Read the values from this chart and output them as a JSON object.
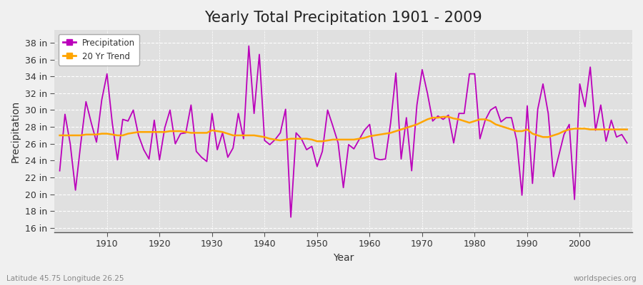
{
  "title": "Yearly Total Precipitation 1901 - 2009",
  "xlabel": "Year",
  "ylabel": "Precipitation",
  "years": [
    1901,
    1902,
    1903,
    1904,
    1905,
    1906,
    1907,
    1908,
    1909,
    1910,
    1911,
    1912,
    1913,
    1914,
    1915,
    1916,
    1917,
    1918,
    1919,
    1920,
    1921,
    1922,
    1923,
    1924,
    1925,
    1926,
    1927,
    1928,
    1929,
    1930,
    1931,
    1932,
    1933,
    1934,
    1935,
    1936,
    1937,
    1938,
    1939,
    1940,
    1941,
    1942,
    1943,
    1944,
    1945,
    1946,
    1947,
    1948,
    1949,
    1950,
    1951,
    1952,
    1953,
    1954,
    1955,
    1956,
    1957,
    1958,
    1959,
    1960,
    1961,
    1962,
    1963,
    1964,
    1965,
    1966,
    1967,
    1968,
    1969,
    1970,
    1971,
    1972,
    1973,
    1974,
    1975,
    1976,
    1977,
    1978,
    1979,
    1980,
    1981,
    1982,
    1983,
    1984,
    1985,
    1986,
    1987,
    1988,
    1989,
    1990,
    1991,
    1992,
    1993,
    1994,
    1995,
    1996,
    1997,
    1998,
    1999,
    2000,
    2001,
    2002,
    2003,
    2004,
    2005,
    2006,
    2007,
    2008,
    2009
  ],
  "precip": [
    22.8,
    29.5,
    26.0,
    20.5,
    26.0,
    31.0,
    28.5,
    26.2,
    31.2,
    34.3,
    28.5,
    24.1,
    28.9,
    28.7,
    30.0,
    27.0,
    25.3,
    24.2,
    28.8,
    24.1,
    27.9,
    30.0,
    26.0,
    27.2,
    27.3,
    30.6,
    25.1,
    24.4,
    23.9,
    29.6,
    25.3,
    27.3,
    24.4,
    25.5,
    29.6,
    26.6,
    37.6,
    29.6,
    36.6,
    26.4,
    25.9,
    26.5,
    27.3,
    30.1,
    17.3,
    27.3,
    26.6,
    25.3,
    25.7,
    23.3,
    25.1,
    30.0,
    28.1,
    26.1,
    20.8,
    25.9,
    25.4,
    26.5,
    27.6,
    28.3,
    24.3,
    24.1,
    24.2,
    28.5,
    34.4,
    24.2,
    29.1,
    22.8,
    30.6,
    34.8,
    32.0,
    28.7,
    29.3,
    28.9,
    29.4,
    26.1,
    29.6,
    29.6,
    34.3,
    34.3,
    26.6,
    28.8,
    30.0,
    30.4,
    28.6,
    29.1,
    29.1,
    26.4,
    19.9,
    30.5,
    21.3,
    30.1,
    33.1,
    29.6,
    22.1,
    24.6,
    27.1,
    28.3,
    19.4,
    33.1,
    30.4,
    35.1,
    27.6,
    30.6,
    26.3,
    28.8,
    26.8,
    27.1,
    26.1
  ],
  "trend": [
    27.0,
    27.0,
    27.0,
    27.0,
    27.0,
    27.1,
    27.1,
    27.1,
    27.2,
    27.2,
    27.1,
    27.0,
    27.0,
    27.2,
    27.3,
    27.4,
    27.4,
    27.4,
    27.4,
    27.4,
    27.4,
    27.5,
    27.5,
    27.5,
    27.4,
    27.3,
    27.3,
    27.3,
    27.3,
    27.6,
    27.5,
    27.4,
    27.2,
    27.0,
    27.0,
    27.0,
    27.0,
    27.0,
    26.9,
    26.8,
    26.6,
    26.5,
    26.4,
    26.5,
    26.6,
    26.6,
    26.6,
    26.6,
    26.5,
    26.3,
    26.3,
    26.4,
    26.5,
    26.5,
    26.5,
    26.5,
    26.5,
    26.6,
    26.7,
    26.9,
    27.0,
    27.1,
    27.2,
    27.3,
    27.5,
    27.7,
    27.9,
    28.1,
    28.3,
    28.6,
    28.9,
    29.1,
    29.1,
    29.2,
    29.2,
    29.0,
    28.9,
    28.7,
    28.5,
    28.7,
    28.9,
    28.9,
    28.7,
    28.3,
    28.1,
    27.9,
    27.7,
    27.5,
    27.5,
    27.7,
    27.2,
    27.0,
    26.8,
    26.8,
    27.0,
    27.2,
    27.5,
    27.7,
    27.8,
    27.8,
    27.8,
    27.7,
    27.7,
    27.7,
    27.7,
    27.7,
    27.7,
    27.7,
    27.7
  ],
  "precip_color": "#bb00bb",
  "trend_color": "#ffa500",
  "fig_bg_color": "#f0f0f0",
  "plot_bg_color": "#e0e0e0",
  "grid_color": "#ffffff",
  "ylim": [
    15.5,
    39.5
  ],
  "xlim": [
    1900,
    2010
  ],
  "ytick_labels": [
    "16 in",
    "18 in",
    "20 in",
    "22 in",
    "24 in",
    "26 in",
    "28 in",
    "30 in",
    "32 in",
    "34 in",
    "36 in",
    "38 in"
  ],
  "ytick_vals": [
    16,
    18,
    20,
    22,
    24,
    26,
    28,
    30,
    32,
    34,
    36,
    38
  ],
  "xtick_vals": [
    1910,
    1920,
    1930,
    1940,
    1950,
    1960,
    1970,
    1980,
    1990,
    2000
  ],
  "subtitle_left": "Latitude 45.75 Longitude 26.25",
  "subtitle_right": "worldspecies.org",
  "legend_labels": [
    "Precipitation",
    "20 Yr Trend"
  ],
  "linewidth_precip": 1.3,
  "linewidth_trend": 1.8,
  "title_fontsize": 15,
  "axis_fontsize": 10,
  "tick_fontsize": 9
}
